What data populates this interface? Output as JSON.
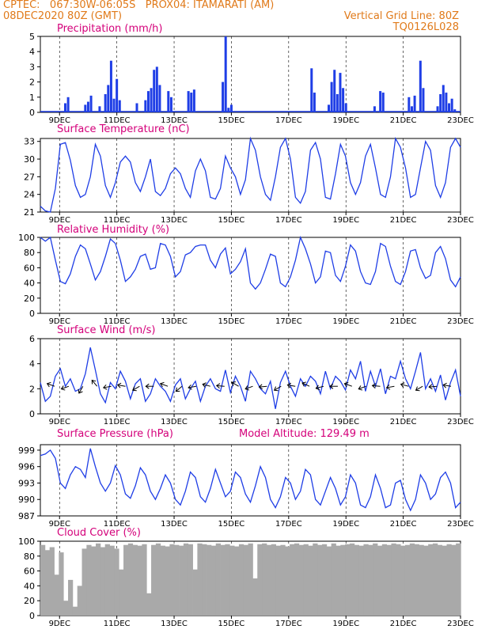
{
  "header": {
    "line1": "CPTEC:   067:30W-06:05S   PROX04: ITAMARATI (AM)",
    "line2_left": "08DEC2020 80Z (GMT)",
    "line2_right": "Vertical Grid Line: 80Z",
    "line3_right": "TQ0126L028"
  },
  "colors": {
    "header": "#e07a1a",
    "title": "#d4007a",
    "series": "#1f3ee6",
    "cloud": "#a9a9a9"
  },
  "x_ticks": [
    "9DEC",
    "11DEC",
    "13DEC",
    "15DEC",
    "17DEC",
    "19DEC",
    "21DEC",
    "23DEC"
  ],
  "chart_data": [
    {
      "type": "bar",
      "title": "Precipitation (mm/h)",
      "ylim": [
        0,
        5
      ],
      "yticks": [
        "0",
        "1",
        "2",
        "3",
        "4",
        "5"
      ],
      "x_range_days": [
        8.33,
        23.0
      ],
      "x": [
        9.2,
        9.3,
        9.9,
        10.0,
        10.1,
        10.4,
        10.6,
        10.7,
        10.8,
        10.9,
        11.0,
        11.1,
        11.7,
        12.0,
        12.1,
        12.2,
        12.3,
        12.4,
        12.5,
        12.8,
        12.9,
        13.5,
        13.6,
        13.7,
        14.7,
        14.8,
        14.9,
        15.0,
        17.8,
        17.9,
        18.4,
        18.5,
        18.6,
        18.7,
        18.8,
        18.9,
        19.0,
        20.0,
        20.2,
        20.3,
        21.2,
        21.3,
        21.4,
        21.6,
        21.7,
        22.2,
        22.3,
        22.4,
        22.5,
        22.6,
        22.7,
        22.8
      ],
      "values": [
        0.6,
        1.0,
        0.5,
        0.7,
        1.1,
        0.4,
        1.2,
        1.8,
        3.4,
        0.9,
        2.2,
        0.8,
        0.6,
        0.8,
        1.4,
        1.6,
        2.8,
        3.0,
        1.8,
        1.4,
        1.0,
        1.4,
        1.3,
        1.5,
        2.0,
        5.0,
        0.3,
        0.5,
        2.9,
        1.3,
        0.5,
        2.0,
        2.8,
        1.2,
        2.6,
        1.6,
        0.6,
        0.4,
        1.4,
        1.3,
        1.0,
        0.4,
        1.1,
        3.4,
        1.6,
        0.4,
        1.2,
        1.8,
        1.3,
        0.6,
        0.9,
        0.2
      ]
    },
    {
      "type": "line",
      "title": "Surface Temperature (nC)",
      "ylim": [
        21,
        33.5
      ],
      "yticks": [
        "21",
        "24",
        "27",
        "30",
        "33"
      ],
      "x_range_days": [
        8.33,
        23.0
      ],
      "values": [
        22.0,
        21.2,
        21.0,
        25.0,
        32.5,
        32.8,
        29.8,
        25.5,
        23.5,
        24.0,
        27.0,
        32.5,
        30.5,
        25.5,
        23.5,
        26.0,
        29.5,
        30.5,
        29.5,
        26.0,
        24.5,
        27.0,
        30.0,
        24.5,
        23.8,
        25.0,
        27.5,
        28.5,
        27.5,
        25.0,
        23.5,
        28.0,
        30.0,
        28.0,
        23.5,
        23.2,
        25.0,
        30.5,
        28.5,
        27.0,
        24.0,
        26.5,
        33.5,
        31.5,
        27.0,
        24.0,
        23.0,
        27.0,
        32.0,
        33.5,
        30.0,
        23.5,
        22.5,
        24.5,
        31.5,
        32.8,
        30.0,
        23.5,
        23.2,
        27.5,
        32.5,
        30.5,
        26.0,
        24.0,
        26.0,
        30.5,
        32.5,
        28.5,
        24.0,
        23.5,
        27.0,
        33.5,
        32.0,
        28.5,
        23.5,
        24.0,
        28.5,
        33.0,
        31.5,
        25.5,
        23.5,
        26.0,
        32.0,
        33.5,
        32.0
      ]
    },
    {
      "type": "line",
      "title": "Relative Humidity (%)",
      "ylim": [
        0,
        100
      ],
      "yticks": [
        "0",
        "20",
        "40",
        "60",
        "80",
        "100"
      ],
      "x_range_days": [
        8.33,
        23.0
      ],
      "values": [
        100,
        95,
        100,
        70,
        42,
        39,
        52,
        75,
        90,
        85,
        65,
        44,
        55,
        75,
        98,
        92,
        70,
        42,
        48,
        58,
        75,
        78,
        58,
        60,
        92,
        90,
        75,
        48,
        55,
        77,
        80,
        88,
        90,
        90,
        70,
        60,
        78,
        86,
        52,
        58,
        68,
        85,
        40,
        32,
        40,
        58,
        78,
        75,
        40,
        35,
        48,
        70,
        100,
        85,
        65,
        40,
        48,
        82,
        80,
        50,
        42,
        62,
        90,
        82,
        55,
        40,
        38,
        55,
        92,
        88,
        62,
        42,
        38,
        55,
        82,
        84,
        60,
        46,
        50,
        80,
        88,
        72,
        44,
        35,
        48
      ]
    },
    {
      "type": "line",
      "title": "Surface Wind (m/s)",
      "ylim": [
        0,
        6
      ],
      "yticks": [
        "0",
        "2",
        "4",
        "6"
      ],
      "x_range_days": [
        8.33,
        23.0
      ],
      "values": [
        2.5,
        1.0,
        1.4,
        3.0,
        3.6,
        2.2,
        2.8,
        1.8,
        2.0,
        3.2,
        5.3,
        3.5,
        1.6,
        0.9,
        2.5,
        2.0,
        3.4,
        2.6,
        1.2,
        2.4,
        2.8,
        1.0,
        1.6,
        2.8,
        2.2,
        1.8,
        1.0,
        2.3,
        2.8,
        1.2,
        2.0,
        2.6,
        1.0,
        2.2,
        2.8,
        2.0,
        1.8,
        3.5,
        1.7,
        3.0,
        2.2,
        1.0,
        3.4,
        2.8,
        2.0,
        1.6,
        2.6,
        0.4,
        2.5,
        3.4,
        2.2,
        1.4,
        2.8,
        2.2,
        3.0,
        2.6,
        1.6,
        3.4,
        2.0,
        3.0,
        2.6,
        1.9,
        3.5,
        2.8,
        4.2,
        1.8,
        3.4,
        2.2,
        3.6,
        1.6,
        3.0,
        2.8,
        4.2,
        2.8,
        2.0,
        3.4,
        4.9,
        2.0,
        2.8,
        1.8,
        3.1,
        1.1,
        2.5,
        3.5,
        1.4
      ]
    },
    {
      "type": "line",
      "title": "Surface Pressure (hPa)",
      "annotation": "Model Altitude: 129.49  m",
      "ylim": [
        987,
        1000
      ],
      "yticks": [
        "987",
        "990",
        "993",
        "996",
        "999"
      ],
      "x_range_days": [
        8.33,
        23.0
      ],
      "values": [
        998.0,
        998.3,
        999.0,
        997.5,
        993.0,
        992.0,
        994.5,
        996.0,
        995.5,
        994.0,
        999.3,
        996.0,
        993.0,
        991.5,
        993.0,
        996.2,
        994.5,
        991.0,
        990.2,
        992.5,
        995.8,
        994.5,
        991.5,
        990.0,
        992.0,
        994.5,
        993.0,
        990.0,
        989.0,
        991.5,
        995.0,
        994.0,
        990.5,
        989.5,
        992.0,
        995.5,
        993.0,
        990.5,
        991.5,
        995.0,
        994.0,
        991.0,
        989.5,
        992.5,
        996.0,
        994.0,
        990.0,
        988.5,
        990.5,
        994.0,
        993.0,
        990.0,
        991.5,
        995.5,
        994.5,
        990.0,
        989.0,
        991.5,
        994.0,
        992.0,
        989.0,
        990.5,
        994.5,
        993.0,
        989.0,
        988.5,
        990.5,
        994.5,
        992.0,
        988.5,
        989.0,
        993.0,
        993.5,
        990.0,
        988.0,
        990.0,
        994.5,
        993.0,
        990.0,
        991.0,
        994.0,
        995.0,
        993.0,
        988.5,
        989.5
      ]
    },
    {
      "type": "bar",
      "title": "Cloud Cover (%)",
      "ylim": [
        0,
        100
      ],
      "yticks": [
        "0",
        "20",
        "40",
        "60",
        "80",
        "100"
      ],
      "x_range_days": [
        8.33,
        23.0
      ],
      "values": [
        95,
        88,
        92,
        55,
        85,
        20,
        48,
        12,
        40,
        90,
        95,
        93,
        97,
        92,
        96,
        94,
        90,
        62,
        95,
        97,
        95,
        94,
        96,
        30,
        95,
        97,
        94,
        93,
        96,
        95,
        94,
        97,
        96,
        62,
        97,
        96,
        95,
        94,
        97,
        95,
        96,
        94,
        93,
        96,
        95,
        97,
        50,
        96,
        97,
        95,
        96,
        94,
        95,
        93,
        96,
        97,
        95,
        96,
        94,
        97,
        95,
        96,
        93,
        97,
        94,
        95,
        96,
        97,
        95,
        94,
        96,
        95,
        97,
        94,
        96,
        95,
        97,
        96,
        94,
        95,
        97,
        96,
        95,
        94,
        96,
        97,
        95,
        94,
        96,
        95,
        97
      ]
    }
  ]
}
